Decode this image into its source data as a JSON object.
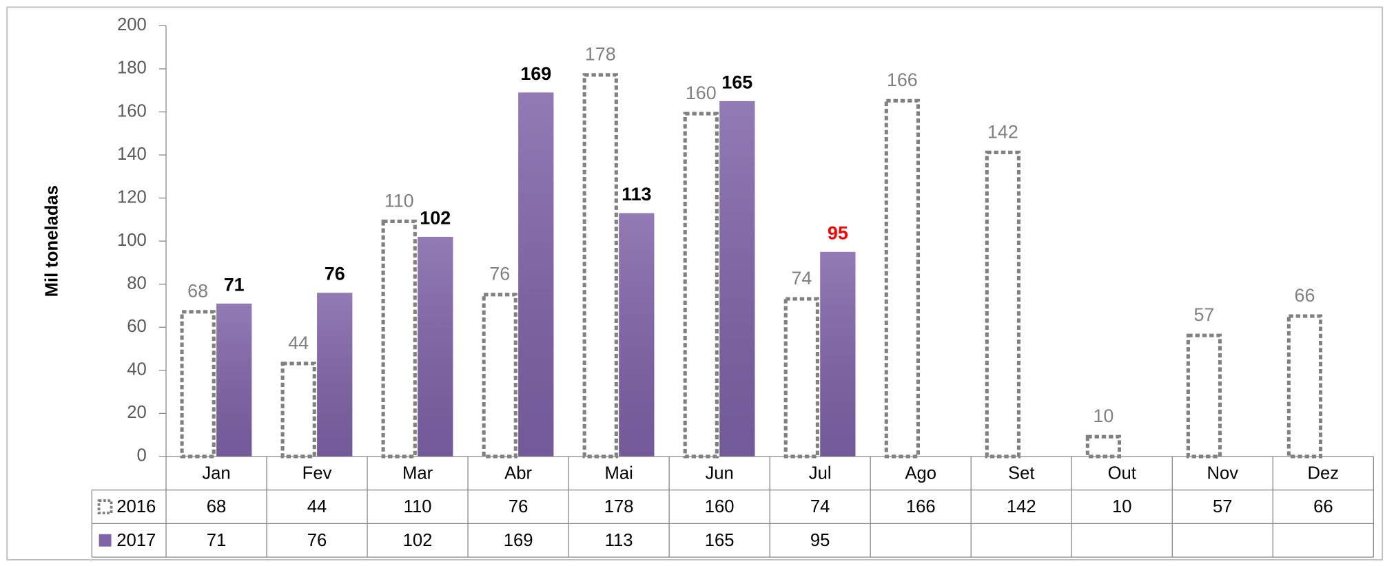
{
  "chart_data": {
    "type": "bar",
    "y_label": "Mil toneladas",
    "categories": [
      "Jan",
      "Fev",
      "Mar",
      "Abr",
      "Mai",
      "Jun",
      "Jul",
      "Ago",
      "Set",
      "Out",
      "Nov",
      "Dez"
    ],
    "series": [
      {
        "name": "2016",
        "color": "#808080",
        "style": "dashed",
        "label_color": "#808080",
        "values": [
          68,
          44,
          110,
          76,
          178,
          160,
          74,
          166,
          142,
          10,
          57,
          66
        ]
      },
      {
        "name": "2017",
        "color": "#7f63a8",
        "style": "solid",
        "label_bold": true,
        "label_colors": [
          "#000000",
          "#000000",
          "#000000",
          "#000000",
          "#000000",
          "#000000",
          "#ff0000",
          null,
          null,
          null,
          null,
          null
        ],
        "values": [
          71,
          76,
          102,
          169,
          113,
          165,
          95,
          null,
          null,
          null,
          null,
          null
        ]
      }
    ],
    "ylim": [
      0,
      200
    ],
    "yticks": [
      0,
      20,
      40,
      60,
      80,
      100,
      120,
      140,
      160,
      180,
      200
    ],
    "data_table": true
  }
}
